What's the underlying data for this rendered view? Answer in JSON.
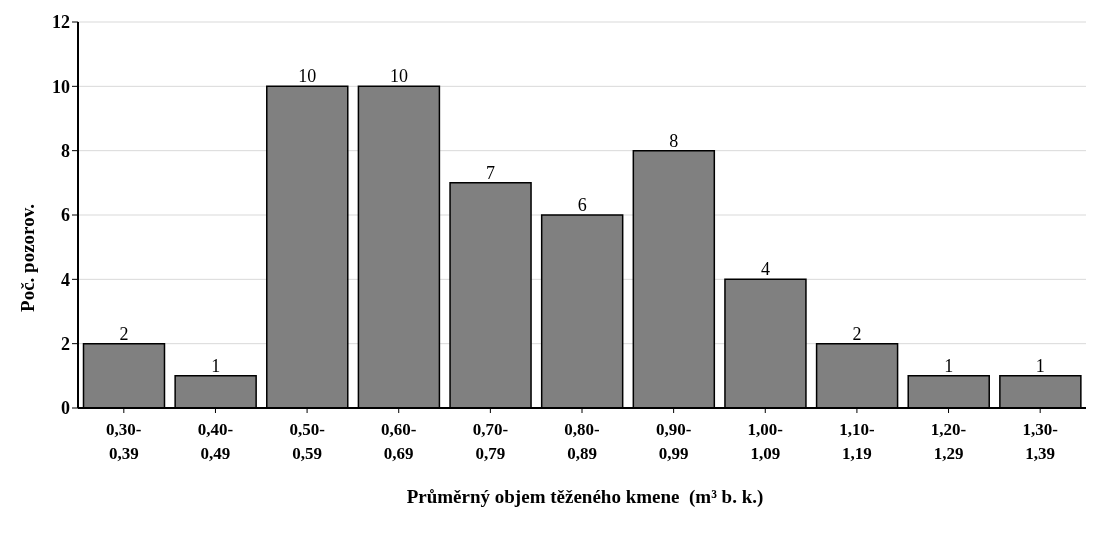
{
  "chart_data": {
    "type": "bar",
    "xlabel": "Průměrný objem těženého kmene  (m³ b. k.)",
    "ylabel": "Poč. pozorov.",
    "categories": [
      "0,30-0,39",
      "0,40-0,49",
      "0,50-0,59",
      "0,60-0,69",
      "0,70-0,79",
      "0,80-0,89",
      "0,90-0,99",
      "1,00-1,09",
      "1,10-1,19",
      "1,20-1,29",
      "1,30-1,39"
    ],
    "values": [
      2,
      1,
      10,
      10,
      7,
      6,
      8,
      4,
      2,
      1,
      1
    ],
    "color": "#808080",
    "ylim": [
      0,
      12
    ],
    "yticks": [
      0,
      2,
      4,
      6,
      8,
      10,
      12
    ],
    "grid": "y",
    "data_labels": true,
    "legend": false
  }
}
